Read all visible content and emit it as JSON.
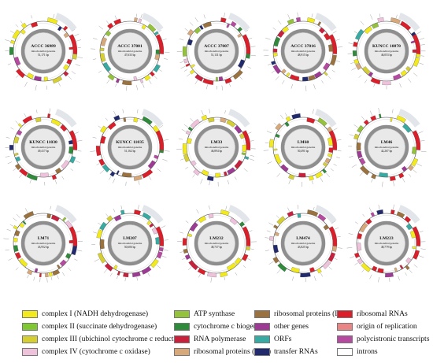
{
  "figure": {
    "grid_columns": 5,
    "genome_subtitle": "mitochondrial genome",
    "maps": [
      {
        "label": "ACCC 36989",
        "size": "51,171 bp"
      },
      {
        "label": "ACCC 37001",
        "size": "47,633 bp"
      },
      {
        "label": "ACCC 37007",
        "size": "51,131 bp"
      },
      {
        "label": "ACCC 37016",
        "size": "48,915 bp"
      },
      {
        "label": "KUNCC 10870",
        "size": "46,053 bp"
      },
      {
        "label": "KUNCC 11030",
        "size": "49,417 bp"
      },
      {
        "label": "KUNCC 11035",
        "size": "51,162 bp"
      },
      {
        "label": "LM33",
        "size": "46,894 bp"
      },
      {
        "label": "LM60",
        "size": "50,491 bp"
      },
      {
        "label": "LM46",
        "size": "42,267 bp"
      },
      {
        "label": "LM71",
        "size": "43,952 bp"
      },
      {
        "label": "LM207",
        "size": "50,606 bp"
      },
      {
        "label": "LM232",
        "size": "48,737 bp"
      },
      {
        "label": "LM474",
        "size": "43,825 bp"
      },
      {
        "label": "LM223",
        "size": "48,779 bp"
      }
    ]
  },
  "legend": {
    "items": [
      {
        "label": "complex I (NADH dehydrogenase)",
        "color": "#f2ea1d"
      },
      {
        "label": "complex II (succinate dehydrogenase)",
        "color": "#7fc832"
      },
      {
        "label": "complex III (ubichinol cytochrome c reductase)",
        "color": "#d6cf34"
      },
      {
        "label": "complex IV (cytochrome c oxidase)",
        "color": "#efc2dc"
      },
      {
        "label": "ATP synthase",
        "color": "#94c23c"
      },
      {
        "label": "cytochrome c biogenesis",
        "color": "#2f8a3c"
      },
      {
        "label": "RNA polymerase",
        "color": "#c7213d"
      },
      {
        "label": "ribosomal proteins (SSU)",
        "color": "#d7a87a"
      },
      {
        "label": "ribosomal proteins (LSU)",
        "color": "#9a7240"
      },
      {
        "label": "other genes",
        "color": "#9d3a93"
      },
      {
        "label": "ORFs",
        "color": "#39aaa1"
      },
      {
        "label": "transfer RNAs",
        "color": "#222a6e"
      },
      {
        "label": "ribosomal RNAs",
        "color": "#db1f2a"
      },
      {
        "label": "origin of replication",
        "color": "#ea8585"
      },
      {
        "label": "polycistronic transcripts",
        "color": "#b54aa0"
      },
      {
        "label": "introns",
        "color": "#ffffff"
      }
    ]
  }
}
